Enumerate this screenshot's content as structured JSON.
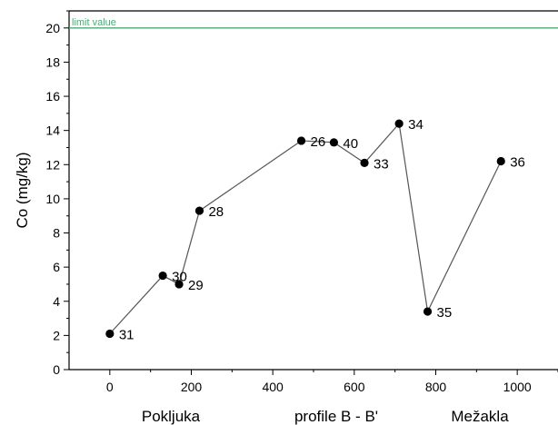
{
  "chart_data": {
    "type": "line",
    "ylabel": "Co (mg/kg)",
    "xlim": [
      -100,
      1100
    ],
    "ylim": [
      0,
      21
    ],
    "x_ticks": [
      0,
      200,
      400,
      600,
      800,
      1000
    ],
    "y_ticks": [
      0,
      2,
      4,
      6,
      8,
      10,
      12,
      14,
      16,
      18,
      20
    ],
    "x_category_labels": [
      "Pokljuka",
      "profile B - B'",
      "Mežakla"
    ],
    "limit_line": {
      "value": 20,
      "label": "limit value",
      "color": "#3cb371"
    },
    "series": [
      {
        "line_color": "#555555",
        "marker_color": "#000000",
        "points": [
          {
            "x": 0,
            "y": 2.1,
            "label": "31"
          },
          {
            "x": 130,
            "y": 5.5,
            "label": "30"
          },
          {
            "x": 170,
            "y": 5.0,
            "label": "29"
          },
          {
            "x": 220,
            "y": 9.3,
            "label": "28"
          },
          {
            "x": 470,
            "y": 13.4,
            "label": "26"
          },
          {
            "x": 550,
            "y": 13.3,
            "label": "40"
          },
          {
            "x": 625,
            "y": 12.1,
            "label": "33"
          },
          {
            "x": 710,
            "y": 14.4,
            "label": "34"
          },
          {
            "x": 780,
            "y": 3.4,
            "label": "35"
          },
          {
            "x": 960,
            "y": 12.2,
            "label": "36"
          }
        ]
      }
    ],
    "grid": false
  }
}
